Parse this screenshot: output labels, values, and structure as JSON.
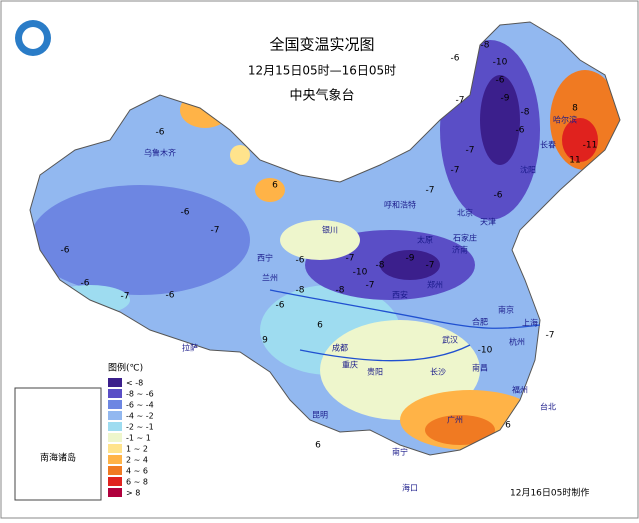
{
  "header": {
    "title": "全国变温实况图",
    "subtitle": "12月15日05时—16日05时",
    "issuer": "中央气象台"
  },
  "legend": {
    "title": "图例(℃)",
    "items": [
      {
        "label": "< -8",
        "color": "#3b1f8c"
      },
      {
        "label": "-8 ~ -6",
        "color": "#5a4ec6"
      },
      {
        "label": "-6 ~ -4",
        "color": "#6d86e2"
      },
      {
        "label": "-4 ~ -2",
        "color": "#92b8f0"
      },
      {
        "label": "-2 ~ -1",
        "color": "#9edcf0"
      },
      {
        "label": "-1 ~ 1",
        "color": "#eef6cc"
      },
      {
        "label": "1 ~ 2",
        "color": "#ffe38c"
      },
      {
        "label": "2 ~ 4",
        "color": "#ffb347"
      },
      {
        "label": "4 ~ 6",
        "color": "#f07a22"
      },
      {
        "label": "6 ~ 8",
        "color": "#e0221e"
      },
      {
        "label": "> 8",
        "color": "#b0003c"
      }
    ]
  },
  "inset": {
    "label": "南海诸岛"
  },
  "footer": "12月16日05时制作",
  "cities": [
    "乌鲁木齐",
    "拉萨",
    "西宁",
    "兰州",
    "银川",
    "呼和浩特",
    "北京",
    "天津",
    "石家庄",
    "太原",
    "济南",
    "郑州",
    "西安",
    "成都",
    "重庆",
    "贵阳",
    "昆明",
    "南宁",
    "长沙",
    "南昌",
    "武汉",
    "合肥",
    "南京",
    "上海",
    "杭州",
    "福州",
    "台北",
    "沈阳",
    "长春",
    "哈尔滨",
    "海口",
    "广州"
  ],
  "values": [
    -6,
    -6,
    -6,
    -7,
    -6,
    6,
    -6,
    -8,
    -6,
    -7,
    -9,
    -7,
    -8,
    -6,
    -10,
    -7,
    -7,
    -6,
    -9,
    -8,
    -8,
    -6,
    -10,
    -7,
    -11,
    8,
    11,
    9,
    -6,
    6,
    -8,
    -7,
    -10,
    -7,
    -7,
    6,
    6,
    -7,
    -6
  ]
}
